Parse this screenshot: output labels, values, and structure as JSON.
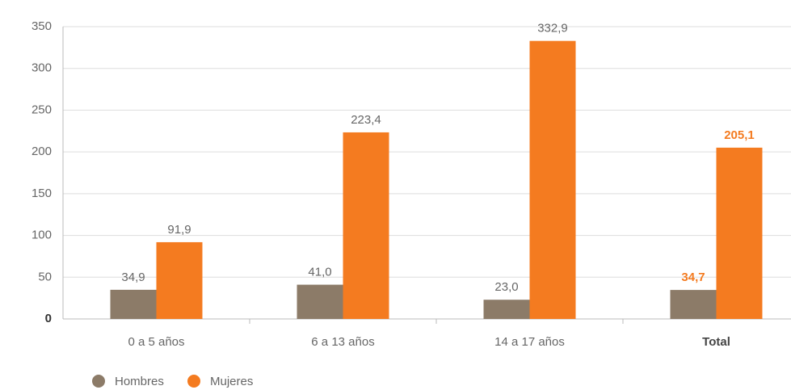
{
  "chart_data": {
    "type": "bar",
    "categories": [
      "0 a 5 años",
      "6 a 13 años",
      "14 a 17 años",
      "Total"
    ],
    "series": [
      {
        "name": "Hombres",
        "color": "#8c7b68",
        "values": [
          34.9,
          41.0,
          23.0,
          34.7
        ],
        "value_labels": [
          "34,9",
          "41,0",
          "23,0",
          "34,7"
        ]
      },
      {
        "name": "Mujeres",
        "color": "#f47b20",
        "values": [
          91.9,
          223.4,
          332.9,
          205.1
        ],
        "value_labels": [
          "91,9",
          "223,4",
          "332,9",
          "205,1"
        ]
      }
    ],
    "ylim": [
      0,
      350
    ],
    "yticks": [
      0,
      50,
      100,
      150,
      200,
      250,
      300,
      350
    ],
    "grid": true,
    "legend": "bottom-left"
  }
}
